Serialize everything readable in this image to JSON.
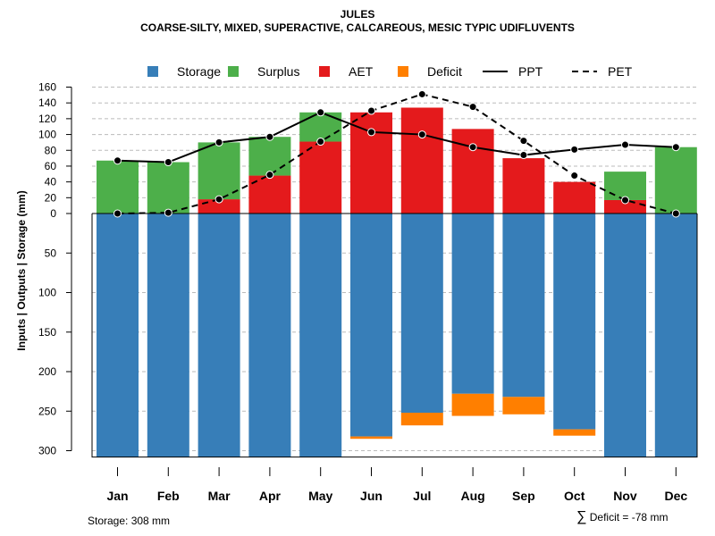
{
  "title": "JULES",
  "subtitle": "COARSE-SILTY, MIXED, SUPERACTIVE, CALCAREOUS, MESIC TYPIC UDIFLUVENTS",
  "footer": {
    "storage_text": "Storage: 308 mm",
    "deficit_symbol": "∑",
    "deficit_text": "Deficit = -78 mm"
  },
  "colors": {
    "storage": "#377eb8",
    "surplus": "#4daf4a",
    "aet": "#e41a1c",
    "deficit": "#ff7f00",
    "line": "#000000",
    "grid": "#bbbbbb"
  },
  "chart_data": {
    "type": "bar",
    "title": "JULES",
    "subtitle": "COARSE-SILTY, MIXED, SUPERACTIVE, CALCAREOUS, MESIC TYPIC UDIFLUVENTS",
    "ylabel": "Inputs | Outputs | Storage     (mm)",
    "xlabel": "",
    "categories": [
      "Jan",
      "Feb",
      "Mar",
      "Apr",
      "May",
      "Jun",
      "Jul",
      "Aug",
      "Sep",
      "Oct",
      "Nov",
      "Dec"
    ],
    "upper_ticks": [
      0,
      20,
      40,
      60,
      80,
      100,
      120,
      140,
      160
    ],
    "lower_ticks": [
      50,
      100,
      150,
      200,
      250,
      300
    ],
    "upper_ylim": [
      0,
      160
    ],
    "lower_ylim": [
      0,
      308
    ],
    "grid": true,
    "legend": {
      "placement": "top",
      "entries": [
        {
          "label": "Storage",
          "kind": "box",
          "color_key": "storage"
        },
        {
          "label": "Surplus",
          "kind": "box",
          "color_key": "surplus"
        },
        {
          "label": "AET",
          "kind": "box",
          "color_key": "aet"
        },
        {
          "label": "Deficit",
          "kind": "box",
          "color_key": "deficit"
        },
        {
          "label": "PPT",
          "kind": "solid"
        },
        {
          "label": "PET",
          "kind": "dashed"
        }
      ]
    },
    "series": [
      {
        "name": "AET",
        "values": [
          0,
          0,
          18,
          48,
          91,
          128,
          134,
          107,
          70,
          40,
          17,
          0
        ]
      },
      {
        "name": "Surplus",
        "values": [
          67,
          65,
          72,
          49,
          37,
          0,
          0,
          0,
          0,
          0,
          36,
          84
        ]
      },
      {
        "name": "Storage",
        "values": [
          308,
          308,
          308,
          308,
          308,
          282,
          252,
          228,
          232,
          273,
          308,
          308
        ]
      },
      {
        "name": "Deficit",
        "values": [
          0,
          0,
          0,
          0,
          0,
          3,
          16,
          28,
          22,
          8,
          0,
          0
        ]
      },
      {
        "name": "PPT",
        "values": [
          67,
          65,
          90,
          97,
          128,
          103,
          100,
          84,
          74,
          81,
          87,
          84
        ]
      },
      {
        "name": "PET",
        "values": [
          0,
          1,
          18,
          49,
          91,
          130,
          151,
          135,
          92,
          48,
          17,
          0
        ]
      }
    ]
  }
}
